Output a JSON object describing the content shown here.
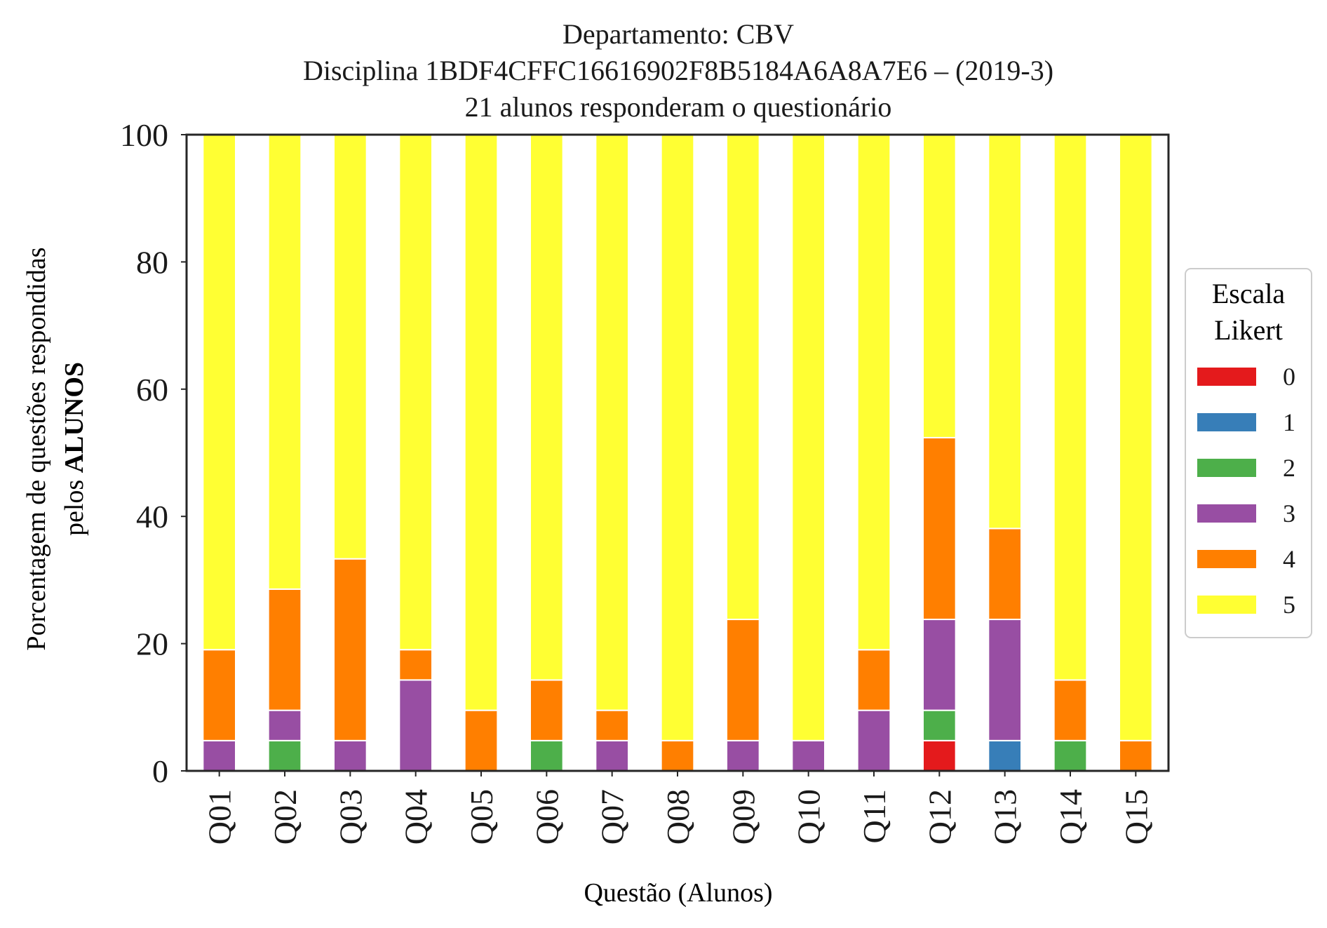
{
  "chart_data": {
    "type": "bar",
    "stacked": true,
    "title_lines": [
      "Departamento: CBV",
      "Disciplina 1BDF4CFFC16616902F8B5184A6A8A7E6 – (2019-3)",
      "21 alunos responderam o questionário"
    ],
    "ylabel_line1": "Porcentagem de questões respondidas",
    "ylabel_line2_prefix": "pelos ",
    "ylabel_line2_bold": "ALUNOS",
    "xlabel": "Questão (Alunos)",
    "ylim": [
      0,
      100
    ],
    "yticks": [
      "0",
      "20",
      "40",
      "60",
      "80",
      "100"
    ],
    "categories": [
      "Q01",
      "Q02",
      "Q03",
      "Q04",
      "Q05",
      "Q06",
      "Q07",
      "Q08",
      "Q09",
      "Q10",
      "Q11",
      "Q12",
      "Q13",
      "Q14",
      "Q15"
    ],
    "legend": {
      "title_lines": [
        "Escala",
        "Likert"
      ],
      "placement": "right-center, outside plot"
    },
    "grid": false,
    "series": [
      {
        "name": "0",
        "color": "#e41a1c",
        "values": [
          0,
          0,
          0,
          0,
          0,
          0,
          0,
          0,
          0,
          0,
          0,
          4.76,
          0,
          0,
          0
        ]
      },
      {
        "name": "1",
        "color": "#377eb8",
        "values": [
          0,
          0,
          0,
          0,
          0,
          0,
          0,
          0,
          0,
          0,
          0,
          0,
          4.76,
          0,
          0
        ]
      },
      {
        "name": "2",
        "color": "#4daf4a",
        "values": [
          0,
          4.76,
          0,
          0,
          0,
          4.76,
          0,
          0,
          0,
          0,
          0,
          4.76,
          0,
          4.76,
          0
        ]
      },
      {
        "name": "3",
        "color": "#984ea3",
        "values": [
          4.76,
          4.76,
          4.76,
          14.29,
          0,
          0,
          4.76,
          0,
          4.76,
          4.76,
          9.52,
          14.29,
          19.05,
          0,
          0
        ]
      },
      {
        "name": "4",
        "color": "#ff7f00",
        "values": [
          14.29,
          19.05,
          28.57,
          4.76,
          9.52,
          9.52,
          4.76,
          4.76,
          19.05,
          0,
          9.52,
          28.57,
          14.29,
          9.52,
          4.76
        ]
      },
      {
        "name": "5",
        "color": "#ffff33",
        "values": [
          80.95,
          71.43,
          66.67,
          80.95,
          90.48,
          85.71,
          90.48,
          95.24,
          76.19,
          95.24,
          80.95,
          47.62,
          61.9,
          85.71,
          95.24
        ]
      }
    ]
  }
}
